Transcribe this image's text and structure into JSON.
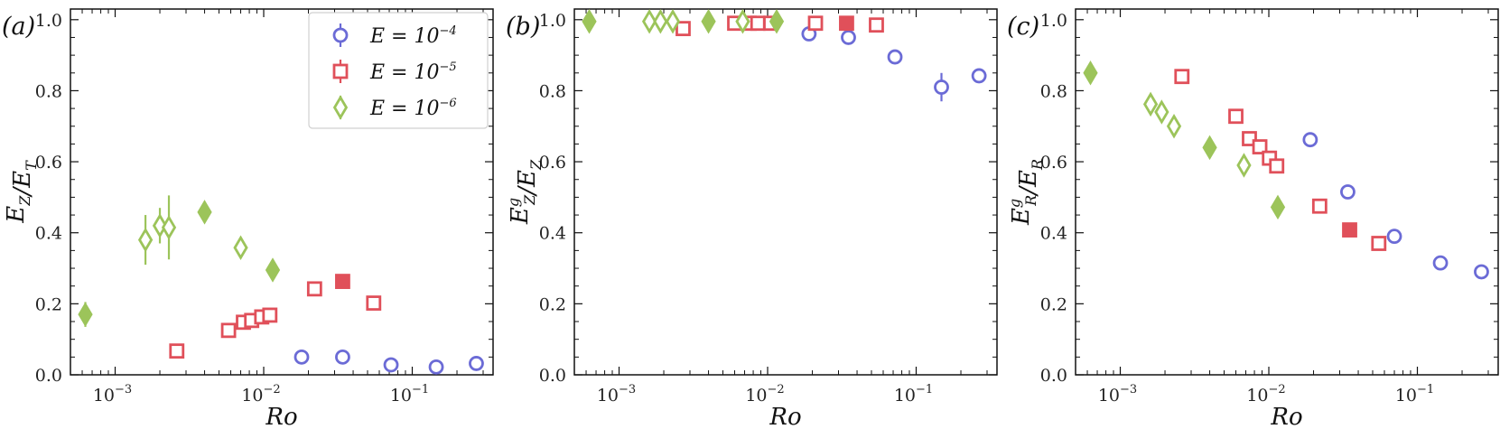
{
  "colors": {
    "blue": "#6b6bd6",
    "red": "#e0505a",
    "green": "#9cc45a"
  },
  "legend": {
    "entries": [
      {
        "series": "E4",
        "prefix": "E = 10",
        "exp": "−4",
        "marker": "circle",
        "color": "#6b6bd6"
      },
      {
        "series": "E5",
        "prefix": "E = 10",
        "exp": "−5",
        "marker": "square",
        "color": "#e0505a"
      },
      {
        "series": "E6",
        "prefix": "E = 10",
        "exp": "−6",
        "marker": "diamond",
        "color": "#9cc45a"
      }
    ]
  },
  "x_tick_labels": [
    {
      "value": 0.001,
      "base": "10",
      "exp": "−3"
    },
    {
      "value": 0.01,
      "base": "10",
      "exp": "−2"
    },
    {
      "value": 0.1,
      "base": "10",
      "exp": "−1"
    }
  ],
  "chart_data": [
    {
      "type": "scatter",
      "panel": "(a)",
      "xlabel": "Ro",
      "ylabel": "E_Z / E_T",
      "xscale": "log",
      "xlim": [
        0.0005,
        0.35
      ],
      "ylim": [
        0,
        1.03
      ],
      "yticks": [
        0.0,
        0.2,
        0.4,
        0.6,
        0.8,
        1.0
      ],
      "series": [
        {
          "key": "E4",
          "name": "E = 10^-4",
          "marker": "circle",
          "color": "#6b6bd6",
          "points": [
            {
              "x": 0.018,
              "y": 0.05
            },
            {
              "x": 0.034,
              "y": 0.05
            },
            {
              "x": 0.072,
              "y": 0.028
            },
            {
              "x": 0.145,
              "y": 0.022
            },
            {
              "x": 0.27,
              "y": 0.032
            }
          ]
        },
        {
          "key": "E5",
          "name": "E = 10^-5",
          "marker": "square",
          "color": "#e0505a",
          "points": [
            {
              "x": 0.0026,
              "y": 0.067
            },
            {
              "x": 0.0058,
              "y": 0.125
            },
            {
              "x": 0.0073,
              "y": 0.148
            },
            {
              "x": 0.0083,
              "y": 0.153
            },
            {
              "x": 0.0097,
              "y": 0.163
            },
            {
              "x": 0.011,
              "y": 0.168
            },
            {
              "x": 0.022,
              "y": 0.242
            },
            {
              "x": 0.034,
              "y": 0.263,
              "filled": true
            },
            {
              "x": 0.055,
              "y": 0.202
            }
          ]
        },
        {
          "key": "E6",
          "name": "E = 10^-6",
          "marker": "diamond",
          "color": "#9cc45a",
          "points": [
            {
              "x": 0.00063,
              "y": 0.17,
              "filled": true,
              "err": 0.035
            },
            {
              "x": 0.0016,
              "y": 0.38,
              "err": 0.07
            },
            {
              "x": 0.002,
              "y": 0.42,
              "err": 0.05
            },
            {
              "x": 0.0023,
              "y": 0.415,
              "err": 0.09
            },
            {
              "x": 0.004,
              "y": 0.458,
              "filled": true
            },
            {
              "x": 0.007,
              "y": 0.358
            },
            {
              "x": 0.0115,
              "y": 0.295,
              "filled": true
            }
          ]
        }
      ]
    },
    {
      "type": "scatter",
      "panel": "(b)",
      "xlabel": "Ro",
      "ylabel": "E_Z^g / E_Z",
      "xscale": "log",
      "xlim": [
        0.0005,
        0.35
      ],
      "ylim": [
        0,
        1.03
      ],
      "yticks": [
        0.0,
        0.2,
        0.4,
        0.6,
        0.8,
        1.0
      ],
      "series": [
        {
          "key": "E4",
          "name": "E = 10^-4",
          "marker": "circle",
          "color": "#6b6bd6",
          "points": [
            {
              "x": 0.019,
              "y": 0.96
            },
            {
              "x": 0.035,
              "y": 0.95
            },
            {
              "x": 0.072,
              "y": 0.895
            },
            {
              "x": 0.148,
              "y": 0.81,
              "err": 0.04
            },
            {
              "x": 0.265,
              "y": 0.842
            }
          ]
        },
        {
          "key": "E5",
          "name": "E = 10^-5",
          "marker": "square",
          "color": "#e0505a",
          "points": [
            {
              "x": 0.0027,
              "y": 0.975
            },
            {
              "x": 0.006,
              "y": 0.99
            },
            {
              "x": 0.0075,
              "y": 0.99
            },
            {
              "x": 0.0086,
              "y": 0.99
            },
            {
              "x": 0.0105,
              "y": 0.99
            },
            {
              "x": 0.021,
              "y": 0.99
            },
            {
              "x": 0.034,
              "y": 0.99,
              "filled": true
            },
            {
              "x": 0.054,
              "y": 0.985
            }
          ]
        },
        {
          "key": "E6",
          "name": "E = 10^-6",
          "marker": "diamond",
          "color": "#9cc45a",
          "points": [
            {
              "x": 0.00063,
              "y": 0.995,
              "filled": true
            },
            {
              "x": 0.0016,
              "y": 0.995
            },
            {
              "x": 0.0019,
              "y": 0.995
            },
            {
              "x": 0.0023,
              "y": 0.995
            },
            {
              "x": 0.004,
              "y": 0.995,
              "filled": true
            },
            {
              "x": 0.0068,
              "y": 0.995
            },
            {
              "x": 0.0115,
              "y": 0.995,
              "filled": true
            }
          ]
        }
      ]
    },
    {
      "type": "scatter",
      "panel": "(c)",
      "xlabel": "Ro",
      "ylabel": "E_R^g / E_R",
      "xscale": "log",
      "xlim": [
        0.0005,
        0.35
      ],
      "ylim": [
        0,
        1.03
      ],
      "yticks": [
        0.0,
        0.2,
        0.4,
        0.6,
        0.8,
        1.0
      ],
      "series": [
        {
          "key": "E4",
          "name": "E = 10^-4",
          "marker": "circle",
          "color": "#6b6bd6",
          "points": [
            {
              "x": 0.019,
              "y": 0.662
            },
            {
              "x": 0.034,
              "y": 0.515
            },
            {
              "x": 0.07,
              "y": 0.39
            },
            {
              "x": 0.143,
              "y": 0.315
            },
            {
              "x": 0.27,
              "y": 0.29
            }
          ]
        },
        {
          "key": "E5",
          "name": "E = 10^-5",
          "marker": "square",
          "color": "#e0505a",
          "points": [
            {
              "x": 0.0026,
              "y": 0.84
            },
            {
              "x": 0.006,
              "y": 0.728
            },
            {
              "x": 0.0074,
              "y": 0.665
            },
            {
              "x": 0.0087,
              "y": 0.642
            },
            {
              "x": 0.0101,
              "y": 0.61
            },
            {
              "x": 0.0113,
              "y": 0.588
            },
            {
              "x": 0.022,
              "y": 0.475
            },
            {
              "x": 0.035,
              "y": 0.408,
              "filled": true
            },
            {
              "x": 0.055,
              "y": 0.37
            }
          ]
        },
        {
          "key": "E6",
          "name": "E = 10^-6",
          "marker": "diamond",
          "color": "#9cc45a",
          "points": [
            {
              "x": 0.00063,
              "y": 0.85,
              "filled": true
            },
            {
              "x": 0.0016,
              "y": 0.762
            },
            {
              "x": 0.0019,
              "y": 0.74
            },
            {
              "x": 0.0023,
              "y": 0.7
            },
            {
              "x": 0.004,
              "y": 0.64,
              "filled": true
            },
            {
              "x": 0.0068,
              "y": 0.59
            },
            {
              "x": 0.0115,
              "y": 0.472,
              "filled": true
            }
          ]
        }
      ]
    }
  ]
}
